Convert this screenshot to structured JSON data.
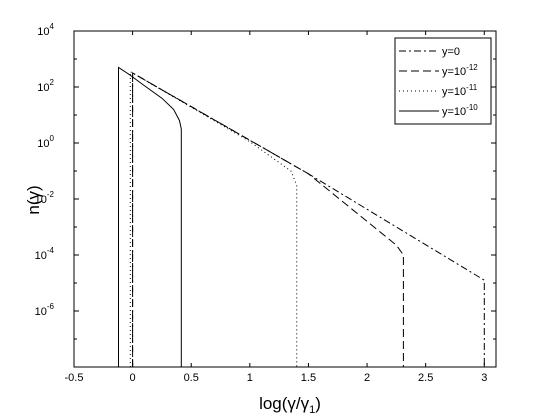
{
  "chart_data": {
    "type": "line",
    "title": "",
    "xlabel_main": "log(γ/γ",
    "xlabel_sub": "1",
    "xlabel_close": ")",
    "ylabel": "n(γ)",
    "xlim": [
      -0.5,
      3.1
    ],
    "ylim_log10": [
      -8,
      4
    ],
    "yscale": "log",
    "grid": false,
    "legend_placement": "top-right",
    "x_ticks": [
      {
        "value": -0.5,
        "label": "-0.5"
      },
      {
        "value": 0,
        "label": "0"
      },
      {
        "value": 0.5,
        "label": "0.5"
      },
      {
        "value": 1,
        "label": "1"
      },
      {
        "value": 1.5,
        "label": "1.5"
      },
      {
        "value": 2,
        "label": "2"
      },
      {
        "value": 2.5,
        "label": "2.5"
      },
      {
        "value": 3,
        "label": "3"
      }
    ],
    "y_ticks": [
      {
        "exp": 4,
        "base": "10",
        "sup": "4"
      },
      {
        "exp": 2,
        "base": "10",
        "sup": "2"
      },
      {
        "exp": 0,
        "base": "10",
        "sup": "0"
      },
      {
        "exp": -2,
        "base": "10",
        "sup": "-2"
      },
      {
        "exp": -4,
        "base": "10",
        "sup": "-4"
      },
      {
        "exp": -6,
        "base": "10",
        "sup": "-6"
      }
    ],
    "series": [
      {
        "legend_base": "y=0",
        "legend_sup": "",
        "dash": "7,3,2,3",
        "points": [
          [
            0,
            -8
          ],
          [
            0,
            2.5
          ],
          [
            1.5,
            -1.1
          ],
          [
            3,
            -4.9
          ],
          [
            3,
            -8
          ]
        ]
      },
      {
        "legend_base": "y=10",
        "legend_sup": "-12",
        "dash": "8,4",
        "points": [
          [
            0,
            -8
          ],
          [
            0,
            2.5
          ],
          [
            1.5,
            -1.1
          ],
          [
            2.25,
            -3.65
          ],
          [
            2.31,
            -4.0
          ],
          [
            2.31,
            -8
          ]
        ]
      },
      {
        "legend_base": "y=10",
        "legend_sup": "-11",
        "dash": "1,3",
        "points": [
          [
            -0.02,
            -8
          ],
          [
            -0.02,
            2.55
          ],
          [
            1.0,
            0.05
          ],
          [
            1.35,
            -1.0
          ],
          [
            1.4,
            -1.5
          ],
          [
            1.4,
            -8
          ]
        ]
      },
      {
        "legend_base": "y=10",
        "legend_sup": "-10",
        "dash": "",
        "points": [
          [
            -0.12,
            -8
          ],
          [
            -0.12,
            2.7
          ],
          [
            -0.03,
            2.45
          ],
          [
            0.1,
            2.05
          ],
          [
            0.25,
            1.6
          ],
          [
            0.35,
            1.2
          ],
          [
            0.4,
            0.8
          ],
          [
            0.415,
            0.5
          ],
          [
            0.415,
            -8
          ]
        ]
      }
    ]
  }
}
